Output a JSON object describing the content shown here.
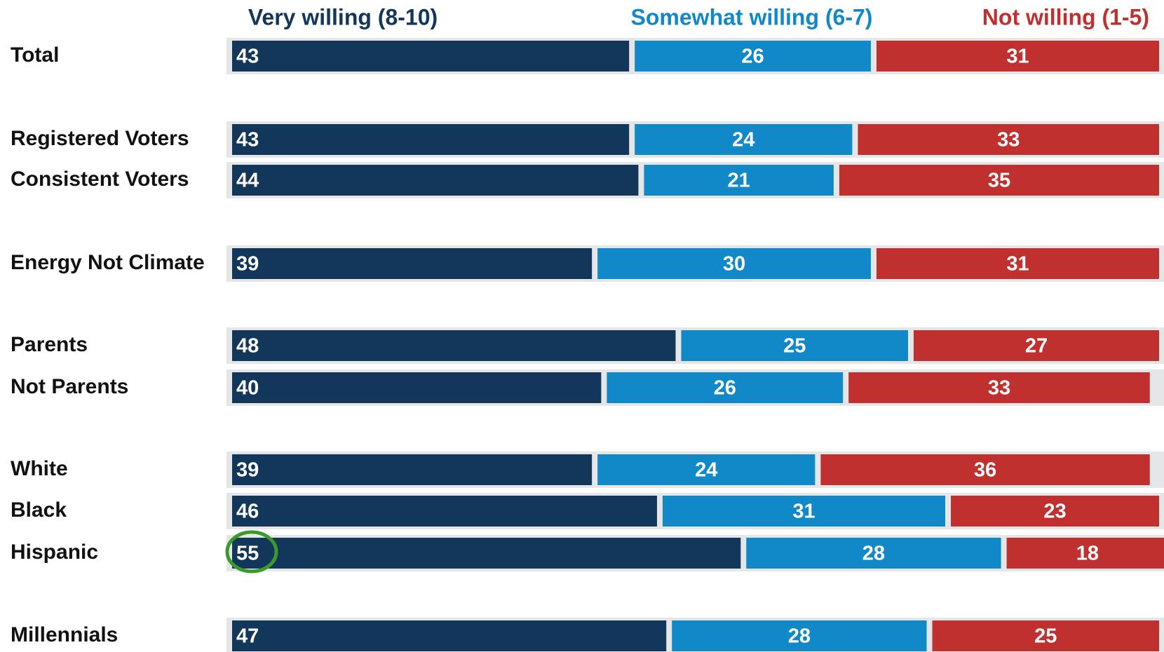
{
  "chart_data": {
    "type": "stacked-bar",
    "orientation": "horizontal",
    "categories": [
      "Total",
      "Registered Voters",
      "Consistent Voters",
      "Energy Not Climate",
      "Parents",
      "Not Parents",
      "White",
      "Black",
      "Hispanic",
      "Millennials"
    ],
    "series": [
      {
        "name": "Very willing (8-10)",
        "color": "#12375a",
        "values": [
          43,
          43,
          44,
          39,
          48,
          40,
          39,
          46,
          55,
          47
        ]
      },
      {
        "name": "Somewhat willing (6-7)",
        "color": "#1188c8",
        "values": [
          26,
          24,
          21,
          30,
          25,
          26,
          24,
          31,
          28,
          28
        ]
      },
      {
        "name": "Not willing (1-5)",
        "color": "#c0302e",
        "values": [
          31,
          33,
          35,
          31,
          27,
          33,
          36,
          23,
          18,
          25
        ]
      }
    ],
    "xlim": [
      0,
      100
    ]
  }
}
